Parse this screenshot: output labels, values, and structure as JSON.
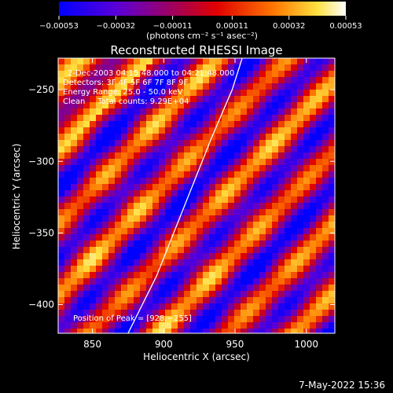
{
  "chart_data": {
    "type": "heatmap",
    "title": "Reconstructed RHESSI Image",
    "xlabel": "Heliocentric X (arcsec)",
    "ylabel": "Heliocentric Y (arcsec)",
    "x_range": [
      826,
      1020
    ],
    "y_range": [
      -420,
      -228
    ],
    "x_ticks": [
      850,
      900,
      950,
      1000
    ],
    "x_tick_labels": [
      "850",
      "900",
      "950",
      "1000"
    ],
    "y_ticks": [
      -250,
      -300,
      -350,
      -400
    ],
    "y_tick_labels": [
      "−250",
      "−300",
      "−350",
      "−400"
    ],
    "colorbar": {
      "min": -0.00053,
      "max": 0.00053,
      "ticks": [
        -0.00053,
        -0.00032,
        -0.00011,
        0.00011,
        0.00032,
        0.00053
      ],
      "tick_labels": [
        "−0.00053",
        "−0.00032",
        "−0.00011",
        "0.00011",
        "0.00032",
        "0.00053"
      ],
      "unit_label": "(photons cm⁻² s⁻¹ asec⁻²)",
      "colormap": "blue-purple-red-yellow-white"
    },
    "annotations": [
      "2-Dec-2003 04:15:48.000 to 04:21:48.000",
      "Detectors: 3F 4F 5F 6F 7F 8F 9F",
      "Energy Range: 25.0 - 50.0 keV",
      "Clean     Total counts: 9.29E+04"
    ],
    "peak_label": "Position of Peak = [928,−255]",
    "limb_curve": [
      [
        875,
        -420
      ],
      [
        895,
        -380
      ],
      [
        915,
        -330
      ],
      [
        933,
        -285
      ],
      [
        948,
        -250
      ],
      [
        955,
        -228
      ]
    ]
  },
  "footer": {
    "timestamp": "7-May-2022 15:36"
  }
}
